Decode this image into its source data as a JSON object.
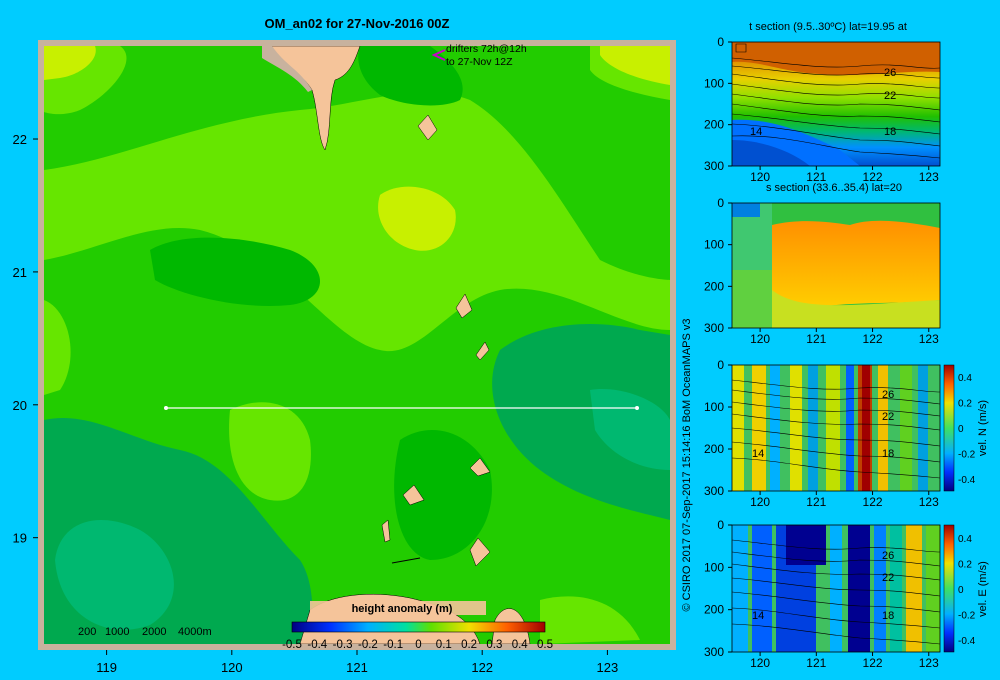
{
  "title": "OM_an02 for 27-Nov-2016 00Z",
  "colors": {
    "background": "#00ccff",
    "sea_mid": "#22cc00",
    "sea_high": "#66e600",
    "sea_higher": "#c8f000",
    "sea_low": "#00b800",
    "sea_lower": "#00a94f",
    "land": "#f5c49a",
    "land_dark": "#c8b29e",
    "frame": "#c8b29e",
    "drifter": "#cc00cc",
    "section_line": "#ffffff"
  },
  "map": {
    "drifter_text": [
      "drifters 72h@12h",
      "to 27-Nov 12Z"
    ],
    "scale_labels": [
      "200",
      "1000",
      "2000",
      "4000m"
    ],
    "section_line": {
      "lon": [
        119.5,
        123.2
      ],
      "lat": 20.0
    }
  },
  "colorbar": {
    "label": "height anomaly (m)",
    "ticks": [
      "-0.5",
      "-0.4",
      "-0.3",
      "-0.2",
      "-0.1",
      "0",
      "0.1",
      "0.2",
      "0.3",
      "0.4",
      "0.5"
    ]
  },
  "side_panels": [
    {
      "title": "t section (9.5..30ºC) lat=19.95 at",
      "contour_labels": [
        "26",
        "22",
        "18",
        "14"
      ]
    },
    {
      "title": "s section (33.6..35.4) lat=20",
      "contour_labels": []
    },
    {
      "colorbar_label": "vel. N (m/s)",
      "contour_labels": [
        "26",
        "22",
        "18",
        "14"
      ]
    },
    {
      "colorbar_label": "vel. E (m/s)",
      "contour_labels": [
        "26",
        "22",
        "18",
        "14"
      ]
    }
  ],
  "side_colorbar_ticks": [
    "0.4",
    "0.2",
    "0",
    "-0.2",
    "-0.4"
  ],
  "credit": "© CSIRO 2017   07-Sep-2017 15:14:16 BoM OceanMAPS v3",
  "chart_data": [
    {
      "type": "heatmap",
      "title": "OM_an02 for 27-Nov-2016 00Z",
      "variable": "height anomaly (m)",
      "x_ticks": [
        119,
        120,
        121,
        122,
        123
      ],
      "y_ticks": [
        19,
        20,
        21,
        22
      ],
      "xlim": [
        118.5,
        123.5
      ],
      "ylim": [
        18.2,
        22.7
      ],
      "clim": [
        -0.5,
        0.5
      ]
    },
    {
      "type": "heatmap",
      "title": "t section (9.5..30ºC) lat=19.95 at",
      "x_ticks": [
        120,
        121,
        122,
        123
      ],
      "y_ticks": [
        0,
        100,
        200,
        300
      ],
      "ylim": [
        300,
        0
      ],
      "contours": [
        26,
        22,
        18,
        14
      ]
    },
    {
      "type": "heatmap",
      "title": "s section (33.6..35.4) lat=20",
      "x_ticks": [
        120,
        121,
        122,
        123
      ],
      "y_ticks": [
        0,
        100,
        200,
        300
      ],
      "ylim": [
        300,
        0
      ]
    },
    {
      "type": "heatmap",
      "variable": "vel. N (m/s)",
      "x_ticks": [
        120,
        121,
        122,
        123
      ],
      "y_ticks": [
        0,
        100,
        200,
        300
      ],
      "clim": [
        -0.4,
        0.4
      ],
      "contours": [
        26,
        22,
        18,
        14
      ]
    },
    {
      "type": "heatmap",
      "variable": "vel. E (m/s)",
      "x_ticks": [
        120,
        121,
        122,
        123
      ],
      "y_ticks": [
        0,
        100,
        200,
        300
      ],
      "clim": [
        -0.4,
        0.4
      ],
      "contours": [
        26,
        22,
        18,
        14
      ]
    }
  ]
}
